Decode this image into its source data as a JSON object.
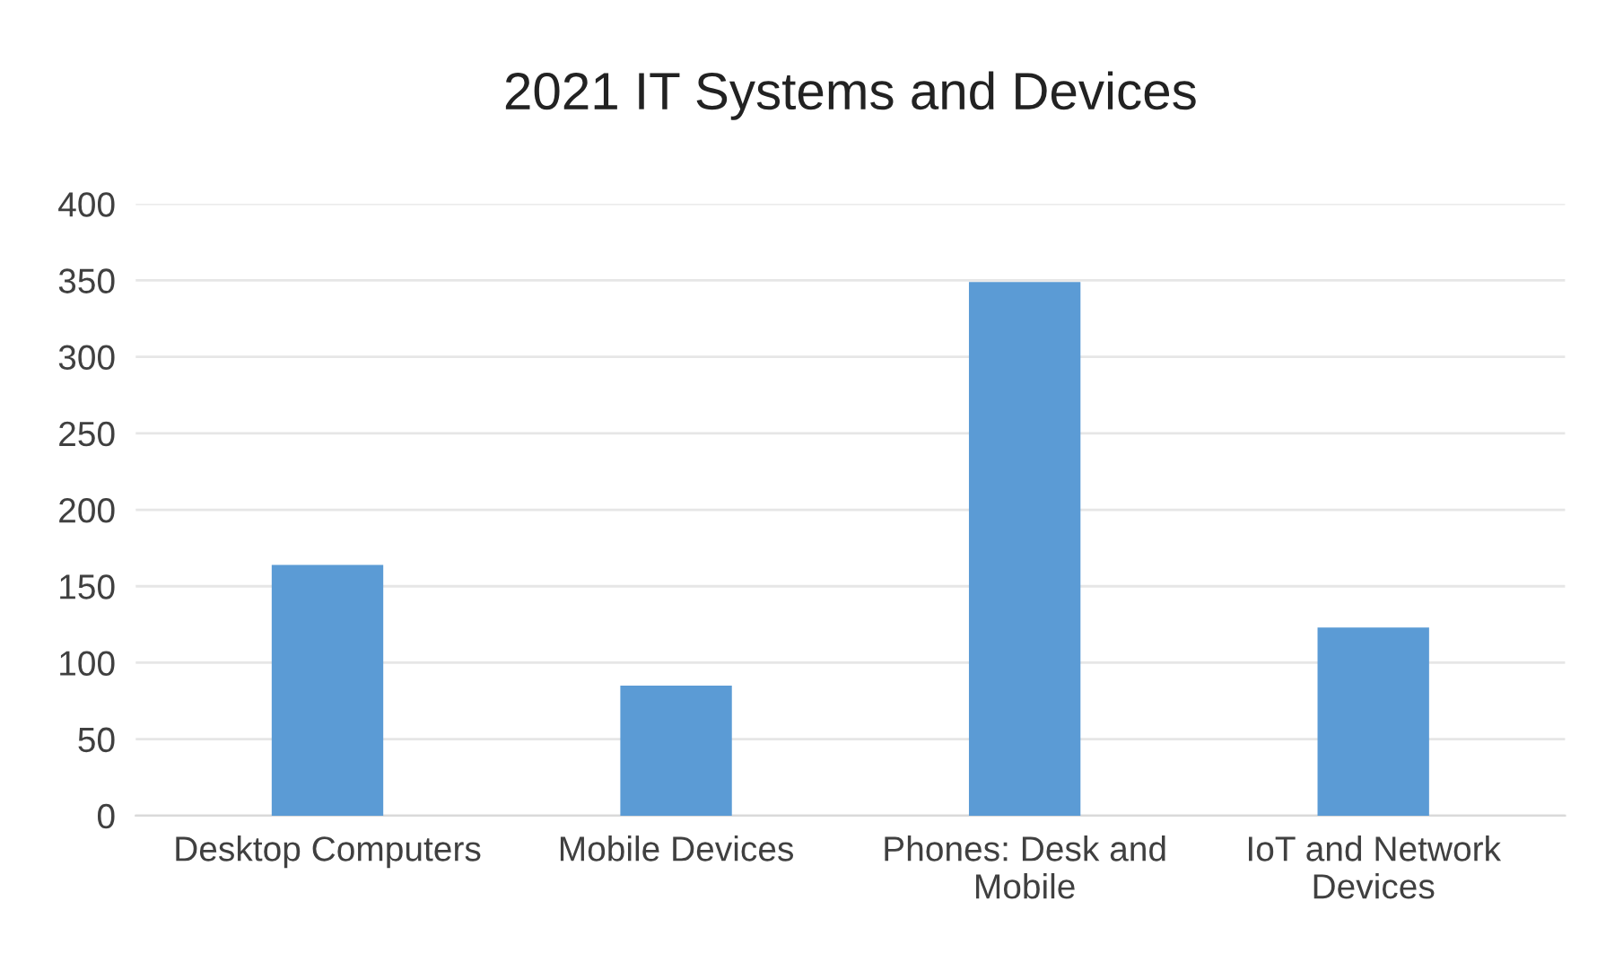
{
  "chart_data": {
    "type": "bar",
    "title": "2021 IT Systems and Devices",
    "categories": [
      "Desktop Computers",
      "Mobile Devices",
      "Phones: Desk and\nMobile",
      "IoT and Network\nDevices"
    ],
    "values": [
      164,
      85,
      349,
      123
    ],
    "color": "#5b9bd5",
    "ylim": [
      0,
      400
    ],
    "yticks": [
      0,
      50,
      100,
      150,
      200,
      250,
      300,
      350,
      400
    ],
    "grid": "y"
  }
}
